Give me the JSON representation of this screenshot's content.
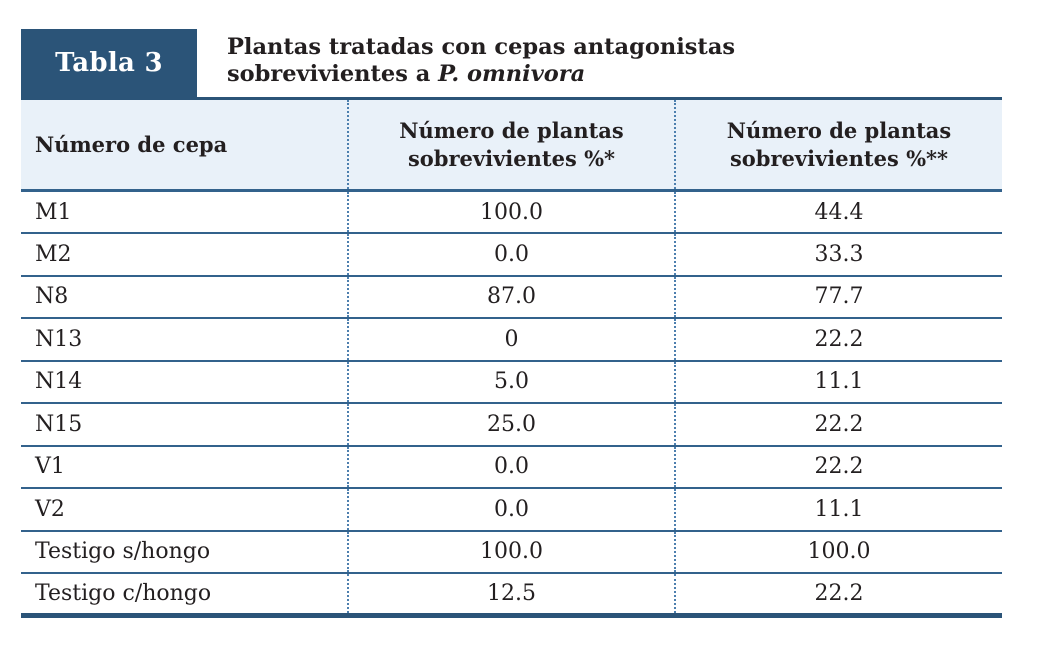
{
  "label": "Tabla 3",
  "title": {
    "line1": "Plantas tratadas con cepas antagonistas",
    "line2_prefix": "sobrevivientes a",
    "line2_species": "P. omnivora"
  },
  "colors": {
    "accent": "#2b5478",
    "row_line": "#33628c",
    "dotted_line": "#4d7fae",
    "header_bg": "#e9f1f9",
    "text": "#231f20"
  },
  "table": {
    "columns": [
      "Número de cepa",
      "Número de plantas sobrevivientes %*",
      "Número de plantas sobrevivientes %**"
    ],
    "rows": [
      {
        "cepa": "M1",
        "pct1": "100.0",
        "pct2": "44.4"
      },
      {
        "cepa": "M2",
        "pct1": "0.0",
        "pct2": "33.3"
      },
      {
        "cepa": "N8",
        "pct1": "87.0",
        "pct2": "77.7"
      },
      {
        "cepa": "N13",
        "pct1": "0",
        "pct2": "22.2"
      },
      {
        "cepa": "N14",
        "pct1": "5.0",
        "pct2": "11.1"
      },
      {
        "cepa": "N15",
        "pct1": "25.0",
        "pct2": "22.2"
      },
      {
        "cepa": "V1",
        "pct1": "0.0",
        "pct2": "22.2"
      },
      {
        "cepa": "V2",
        "pct1": "0.0",
        "pct2": "11.1"
      },
      {
        "cepa": "Testigo s/hongo",
        "pct1": "100.0",
        "pct2": "100.0"
      },
      {
        "cepa": "Testigo c/hongo",
        "pct1": "12.5",
        "pct2": "22.2"
      }
    ]
  },
  "chart_data": {
    "type": "table",
    "title": "Tabla 3 — Plantas tratadas con cepas antagonistas sobrevivientes a P. omnivora",
    "columns": [
      "Número de cepa",
      "Número de plantas sobrevivientes %*",
      "Número de plantas sobrevivientes %**"
    ],
    "rows": [
      [
        "M1",
        100.0,
        44.4
      ],
      [
        "M2",
        0.0,
        33.3
      ],
      [
        "N8",
        87.0,
        77.7
      ],
      [
        "N13",
        0,
        22.2
      ],
      [
        "N14",
        5.0,
        11.1
      ],
      [
        "N15",
        25.0,
        22.2
      ],
      [
        "V1",
        0.0,
        22.2
      ],
      [
        "V2",
        0.0,
        11.1
      ],
      [
        "Testigo s/hongo",
        100.0,
        100.0
      ],
      [
        "Testigo c/hongo",
        12.5,
        22.2
      ]
    ]
  }
}
